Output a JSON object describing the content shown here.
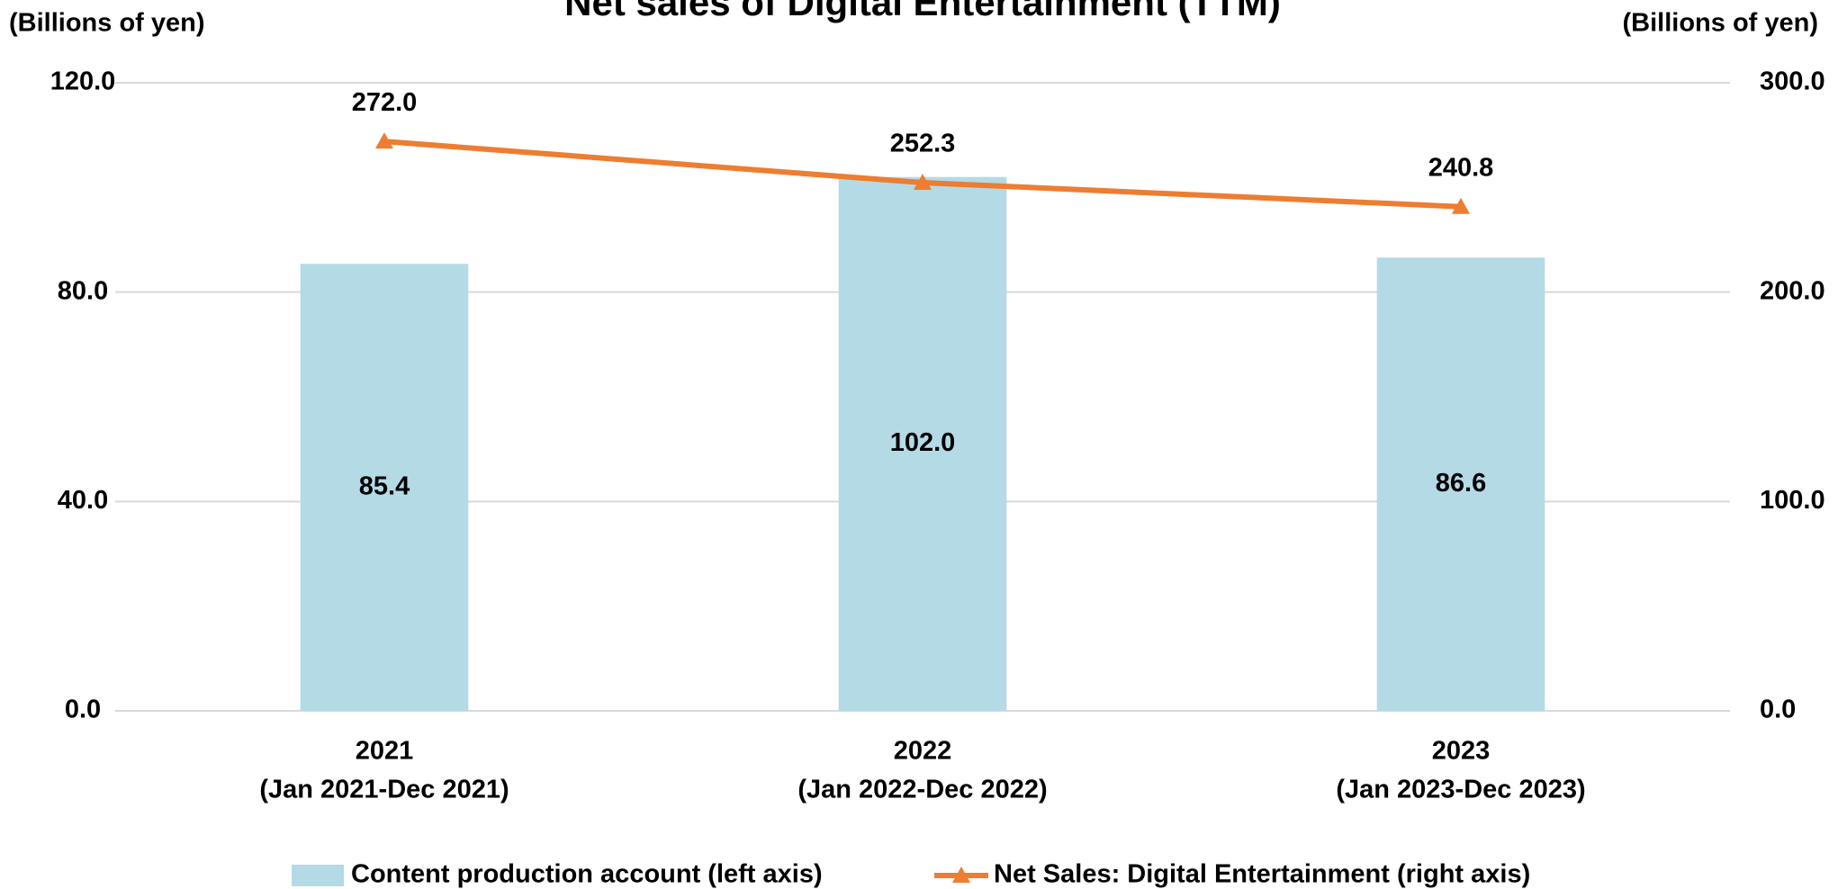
{
  "chart_data": {
    "type": "bar_line",
    "title": "Net sales of Digital Entertainment (TTM)",
    "y_label": "(Billions of yen)",
    "y2_label": "(Billions of yen)",
    "categories": [
      [
        "2021",
        "(Jan 2021-Dec 2021)"
      ],
      [
        "2022",
        "(Jan 2022-Dec 2022)"
      ],
      [
        "2023",
        "(Jan 2023-Dec 2023)"
      ]
    ],
    "series": [
      {
        "name": "Content production account (left axis)",
        "type": "bar",
        "color": "#b4dae6",
        "values": [
          85.4,
          102.0,
          86.6
        ],
        "value_labels": [
          "85.4",
          "102.0",
          "86.6"
        ]
      },
      {
        "name": "Net Sales: Digital Entertainment (right axis)",
        "type": "line",
        "axis": "y2",
        "color": "#ed7d31",
        "values": [
          272.0,
          252.3,
          240.8
        ],
        "value_labels": [
          "272.0",
          "252.3",
          "240.8"
        ]
      }
    ],
    "ylim": [
      0,
      120
    ],
    "yticks": [
      {
        "value": 0,
        "label": "0.0"
      },
      {
        "value": 40,
        "label": "40.0"
      },
      {
        "value": 80,
        "label": "80.0"
      },
      {
        "value": 120,
        "label": "120.0"
      }
    ],
    "y2lim": [
      0,
      300
    ],
    "y2ticks": [
      {
        "value": 0,
        "label": "0.0"
      },
      {
        "value": 100,
        "label": "100.0"
      },
      {
        "value": 200,
        "label": "200.0"
      },
      {
        "value": 300,
        "label": "300.0"
      }
    ],
    "grid": true,
    "legend": "bottom"
  }
}
